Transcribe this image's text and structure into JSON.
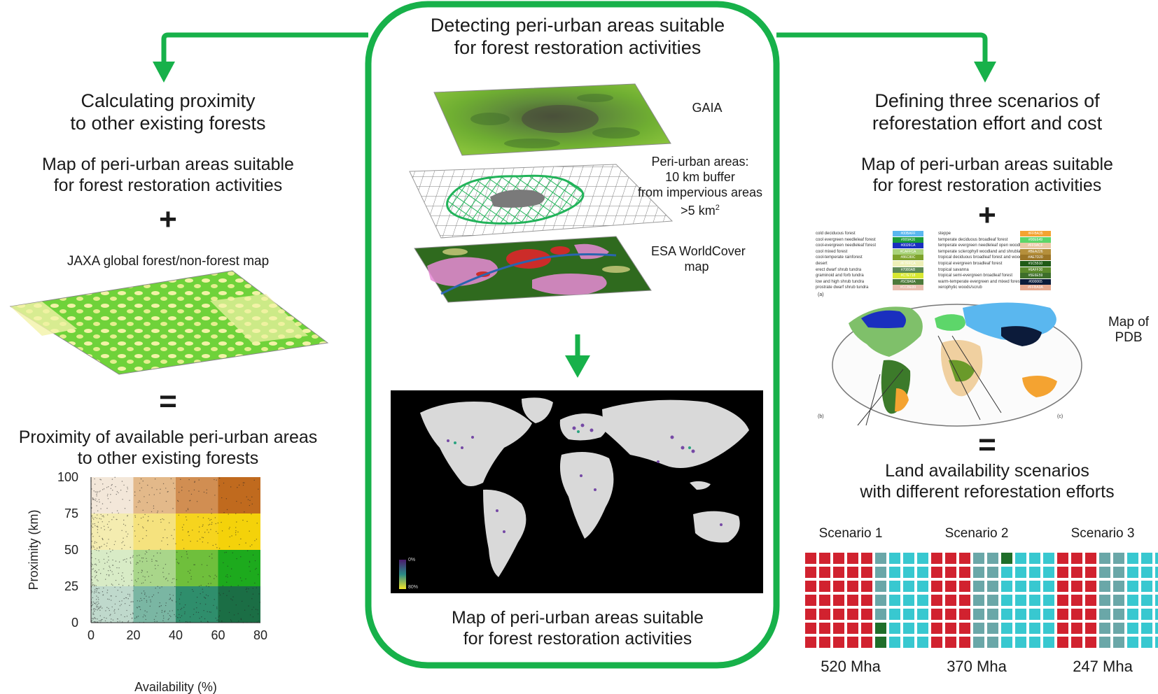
{
  "center": {
    "title_line1": "Detecting peri-urban areas suitable",
    "title_line2": "for forest restoration activities",
    "layer_gaia": "GAIA",
    "layer_periurban_l1": "Peri-urban areas:",
    "layer_periurban_l2": "10 km buffer",
    "layer_periurban_l3": "from impervious areas",
    "layer_periurban_l4": ">5 km",
    "layer_periurban_sup": "2",
    "layer_esa_l1": "ESA WorldCover",
    "layer_esa_l2": "map",
    "result_line1": "Map of peri-urban areas suitable",
    "result_line2": "for forest restoration activities",
    "colorbar_top": "0%",
    "colorbar_bottom": "80%"
  },
  "left": {
    "title_line1": "Calculating proximity",
    "title_line2": "to other existing forests",
    "input1_line1": "Map of peri-urban areas suitable",
    "input1_line2": "for forest restoration activities",
    "plus": "+",
    "input2": "JAXA global forest/non-forest map",
    "equals": "=",
    "output_line1": "Proximity of available peri-urban areas",
    "output_line2": "to other existing forests"
  },
  "right": {
    "title_line1": "Defining three scenarios of",
    "title_line2": "reforestation effort and cost",
    "input1_line1": "Map of peri-urban areas suitable",
    "input1_line2": "for forest restoration activities",
    "plus": "+",
    "pdb_line1": "Map of",
    "pdb_line2": "PDB",
    "equals": "=",
    "output_line1": "Land availability scenarios",
    "output_line2": "with different reforestation efforts",
    "panel_a": "(a)",
    "panel_b": "(b)",
    "panel_c": "(c)",
    "legend_left": [
      {
        "label": "cold deciduous forest",
        "code": "#00BAFF",
        "color": "#5ab7ef"
      },
      {
        "label": "cool evergreen needleleaf forest",
        "code": "#009A16",
        "color": "#1d9c3a"
      },
      {
        "label": "cool-evergreen needleleaf forest",
        "code": "#0026CA",
        "color": "#1a2fbf"
      },
      {
        "label": "cool mixed forest",
        "code": "#CAFFCA",
        "color": "#a9d37a"
      },
      {
        "label": "cool-temperate rainforest",
        "code": "#86C80C",
        "color": "#7ea32c"
      },
      {
        "label": "desert",
        "code": "#F7FFCA",
        "color": "#eef0b8"
      },
      {
        "label": "erect dwarf shrub tundra",
        "code": "#7080AB",
        "color": "#5e8a55"
      },
      {
        "label": "graminoid and forb tundra",
        "code": "#C7E718",
        "color": "#d8e832"
      },
      {
        "label": "low and high shrub tundra",
        "code": "#5C8A6A",
        "color": "#4d7a3a"
      },
      {
        "label": "prostrate dwarf shrub tundra",
        "code": "#CCBE99",
        "color": "#e9bfb0"
      }
    ],
    "legend_right": [
      {
        "label": "steppe",
        "code": "#FFBA35",
        "color": "#f4a331"
      },
      {
        "label": "temperate deciduous broadleaf forest",
        "code": "#00E649",
        "color": "#5dd66a"
      },
      {
        "label": "temperate evergreen needleleaf open woodland",
        "code": "#FF9ACF",
        "color": "#e9c9a7"
      },
      {
        "label": "temperate sclerophyll woodland and shrubland",
        "code": "#BEA226",
        "color": "#b58f3b"
      },
      {
        "label": "tropical deciduous broadleaf forest and woodland",
        "code": "#AE7D20",
        "color": "#9b7526"
      },
      {
        "label": "tropical evergreen broadleaf forest",
        "code": "#1C5510",
        "color": "#1f5a16"
      },
      {
        "label": "tropical savanna",
        "code": "#6AFF30",
        "color": "#5b8a2c"
      },
      {
        "label": "tropical semi-evergreen broadleaf forest",
        "code": "#5E6E59",
        "color": "#3d6e2a"
      },
      {
        "label": "warm-temperate evergreen and mixed forest",
        "code": "#000065",
        "color": "#0c1b3a"
      },
      {
        "label": "xerophytic woods/scrub",
        "code": "#FFBA9A",
        "color": "#e7a98f"
      }
    ]
  },
  "chart_data": {
    "type": "heatmap",
    "xlabel": "Availability (%)",
    "ylabel": "Proximity (km)",
    "x_ticks": [
      0,
      20,
      40,
      60,
      80
    ],
    "y_ticks": [
      0,
      25,
      50,
      75,
      100
    ],
    "xlim": [
      0,
      80
    ],
    "ylim": [
      0,
      100
    ],
    "x_bins": [
      [
        0,
        20
      ],
      [
        20,
        40
      ],
      [
        40,
        60
      ],
      [
        60,
        80
      ]
    ],
    "y_bins": [
      [
        75,
        100
      ],
      [
        50,
        75
      ],
      [
        25,
        50
      ],
      [
        0,
        25
      ]
    ],
    "cell_colors": [
      [
        "#f3e7d9",
        "#e3b98a",
        "#d18e52",
        "#c06a1e"
      ],
      [
        "#f4ecb0",
        "#f5e27e",
        "#f6d41e",
        "#f4d20a"
      ],
      [
        "#d8ebc6",
        "#a9d68a",
        "#6fbf3c",
        "#1daa1d"
      ],
      [
        "#bfd9cc",
        "#7ab6a3",
        "#2f8e6c",
        "#1b6e45"
      ]
    ]
  },
  "scenarios": [
    {
      "name": "Scenario 1",
      "value": "520 Mha",
      "columns": [
        "#d1222f",
        "#d1222f",
        "#d1222f",
        "#d1222f",
        "#d1222f",
        "#6aa7a8",
        "#38c8d0",
        "#38c8d0",
        "#38c8d0",
        "#f4a8b4"
      ],
      "extra": {
        "col2_special_rows": [
          5,
          6
        ],
        "col2_special_color": "#1f6e2a",
        "topright": "#f3a23a",
        "lastcol_lower": "#d4296b",
        "lastcol_bottom": "#6a2ea6"
      }
    },
    {
      "name": "Scenario 2",
      "value": "370 Mha",
      "columns": [
        "#d1222f",
        "#d1222f",
        "#d1222f",
        "#6aa7a8",
        "#6aa7a8",
        "#38c8d0",
        "#38c8d0",
        "#38c8d0",
        "#38c8d0",
        "#f4a8b4"
      ],
      "extra": {
        "topspecial": "#1f6e2a",
        "topright": "#f3a23a",
        "lastcol_lower": "#d4296b",
        "lastcol_bottom": "#6a2ea6"
      }
    },
    {
      "name": "Scenario 3",
      "value": "247 Mha",
      "columns": [
        "#d1222f",
        "#d1222f",
        "#d1222f",
        "#6aa7a8",
        "#6aa7a8",
        "#38c8d0",
        "#38c8d0",
        "#38c8d0",
        "#38c8d0",
        "#f4a8b4"
      ],
      "extra": {
        "topright": "#f3a23a",
        "topright2": "#6a2ea6",
        "lastcol_lower": "#d4296b",
        "lastcol_bottom": "#6a2ea6"
      }
    }
  ],
  "colors": {
    "accent_green": "#17b14a",
    "periurban_low": "#4b1a6e",
    "periurban_high": "#f3e62a",
    "world_land": "#d9d9d9",
    "world_bg": "#000000"
  }
}
